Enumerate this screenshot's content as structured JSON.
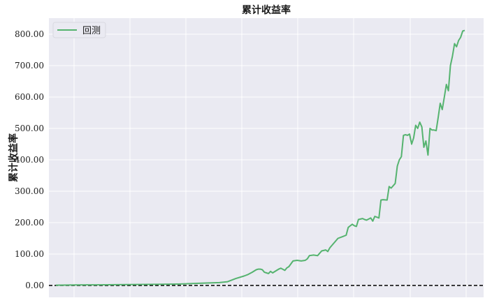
{
  "chart_data": {
    "type": "line",
    "title": "累计收益率",
    "xlabel": "",
    "ylabel": "累计收益率",
    "ylim": [
      -40,
      840
    ],
    "xlim": [
      -0.045,
      1.03
    ],
    "x_ticks": [
      "",
      "",
      "",
      "",
      "",
      "",
      "",
      ""
    ],
    "y_ticks": [
      "0.00",
      "100.00",
      "200.00",
      "300.00",
      "400.00",
      "500.00",
      "600.00",
      "700.00",
      "800.00"
    ],
    "y_tick_values": [
      0,
      100,
      200,
      300,
      400,
      500,
      600,
      700,
      800
    ],
    "grid": true,
    "legend_position": "top-left",
    "reference_line": {
      "y": 0,
      "style": "dashed",
      "color": "#000000"
    },
    "series": [
      {
        "name": "回测",
        "color": "#55b36f",
        "x": [
          0.0,
          0.05,
          0.1,
          0.15,
          0.2,
          0.25,
          0.3,
          0.35,
          0.4,
          0.42,
          0.44,
          0.46,
          0.47,
          0.48,
          0.49,
          0.495,
          0.5,
          0.505,
          0.51,
          0.515,
          0.52,
          0.525,
          0.53,
          0.54,
          0.545,
          0.55,
          0.56,
          0.565,
          0.57,
          0.58,
          0.59,
          0.6,
          0.61,
          0.615,
          0.62,
          0.63,
          0.64,
          0.65,
          0.66,
          0.665,
          0.67,
          0.69,
          0.7,
          0.71,
          0.715,
          0.72,
          0.725,
          0.73,
          0.735,
          0.74,
          0.75,
          0.755,
          0.76,
          0.77,
          0.775,
          0.78,
          0.79,
          0.795,
          0.8,
          0.81,
          0.815,
          0.82,
          0.83,
          0.835,
          0.84,
          0.845,
          0.85,
          0.855,
          0.86,
          0.865,
          0.87,
          0.875,
          0.88,
          0.885,
          0.89,
          0.895,
          0.9,
          0.905,
          0.91,
          0.915,
          0.92,
          0.925,
          0.93,
          0.935,
          0.94,
          0.945,
          0.95,
          0.955,
          0.96,
          0.965,
          0.97,
          0.975,
          0.98,
          0.985,
          0.99,
          0.995,
          1.0
        ],
        "values": [
          1,
          1.5,
          2,
          2.5,
          3,
          3.5,
          4.5,
          7,
          9,
          12,
          22,
          30,
          35,
          42,
          50,
          52,
          52,
          50,
          42,
          40,
          38,
          45,
          40,
          48,
          52,
          55,
          48,
          56,
          60,
          78,
          80,
          78,
          80,
          85,
          95,
          97,
          95,
          110,
          113,
          108,
          120,
          150,
          155,
          160,
          185,
          190,
          195,
          190,
          188,
          210,
          213,
          210,
          208,
          215,
          205,
          220,
          215,
          272,
          273,
          272,
          315,
          310,
          325,
          380,
          400,
          410,
          478,
          480,
          478,
          482,
          450,
          470,
          510,
          500,
          520,
          505,
          440,
          460,
          415,
          500,
          495,
          495,
          493,
          535,
          580,
          560,
          600,
          640,
          620,
          700,
          730,
          770,
          760,
          780,
          790,
          810,
          812
        ]
      }
    ]
  }
}
